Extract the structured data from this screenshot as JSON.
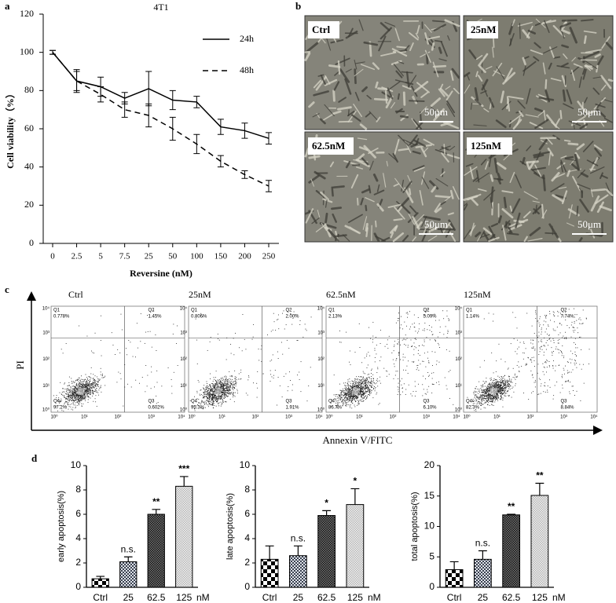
{
  "panel_labels": [
    "a",
    "b",
    "c",
    "d"
  ],
  "chart_data": [
    {
      "type": "line",
      "title": "4T1",
      "x_label": "Reversine (nM)",
      "y_label": "Cell viability（%）",
      "categories": [
        "0",
        "2.5",
        "5",
        "7.5",
        "25",
        "50",
        "100",
        "150",
        "200",
        "250"
      ],
      "ylim": [
        0,
        120
      ],
      "yticks": [
        0,
        20,
        40,
        60,
        80,
        100,
        120
      ],
      "series": [
        {
          "name": "24h",
          "color": "#000000",
          "dashed": false,
          "values": [
            100,
            85,
            82,
            76,
            81,
            75,
            74,
            61,
            59,
            55
          ],
          "error": [
            1,
            5,
            5,
            3,
            9,
            5,
            3,
            4,
            4,
            3
          ]
        },
        {
          "name": "48h",
          "color": "#000000",
          "dashed": true,
          "values": [
            100,
            85,
            78,
            70,
            67,
            60,
            52,
            43,
            36,
            30
          ],
          "error": [
            1,
            6,
            4,
            4,
            6,
            6,
            5,
            3,
            2,
            3
          ]
        }
      ]
    },
    {
      "type": "bar",
      "y_label": "early apoptosis(%)",
      "categories": [
        "Ctrl",
        "25",
        "62.5",
        "125"
      ],
      "x_unit": "nM",
      "values": [
        0.7,
        2.1,
        6.0,
        8.3
      ],
      "error": [
        0.2,
        0.4,
        0.4,
        0.8
      ],
      "annotations": [
        null,
        "n.s.",
        "**",
        "***"
      ],
      "patterns": [
        "checker",
        "fine-check",
        "dense",
        "light"
      ],
      "ylim": [
        0,
        10
      ],
      "yticks": [
        0,
        2,
        4,
        6,
        8,
        10
      ]
    },
    {
      "type": "bar",
      "y_label": "late apoptosis(%)",
      "categories": [
        "Ctrl",
        "25",
        "62.5",
        "125"
      ],
      "x_unit": "nM",
      "values": [
        2.3,
        2.6,
        5.9,
        6.8
      ],
      "error": [
        1.1,
        0.8,
        0.4,
        1.3
      ],
      "annotations": [
        null,
        "n.s.",
        "*",
        "*"
      ],
      "patterns": [
        "checker",
        "fine-check",
        "dense",
        "light"
      ],
      "ylim": [
        0,
        10
      ],
      "yticks": [
        0,
        2,
        4,
        6,
        8,
        10
      ]
    },
    {
      "type": "bar",
      "y_label": "total apoptosis(%)",
      "categories": [
        "Ctrl",
        "25",
        "62.5",
        "125"
      ],
      "x_unit": "nM",
      "values": [
        2.9,
        4.6,
        11.9,
        15.1
      ],
      "error": [
        1.3,
        1.4,
        0.1,
        2.0
      ],
      "annotations": [
        null,
        "n.s.",
        "**",
        "**"
      ],
      "patterns": [
        "checker",
        "fine-check",
        "dense",
        "light"
      ],
      "ylim": [
        0,
        20
      ],
      "yticks": [
        0,
        5,
        10,
        15,
        20
      ]
    }
  ],
  "micrographs": {
    "labels": [
      "Ctrl",
      "25nM",
      "62.5nM",
      "125nM"
    ],
    "scale_bar": "50μm"
  },
  "flow_cytometry": {
    "x_label": "Annexin V/FITC",
    "y_label": "PI",
    "tick_labels": [
      "10⁰",
      "10¹",
      "10²",
      "10³",
      "10⁴"
    ],
    "plots": [
      {
        "title": "Ctrl",
        "quadrants": [
          {
            "name": "Q1",
            "value": "0.778%"
          },
          {
            "name": "Q2",
            "value": "1.45%"
          },
          {
            "name": "Q3",
            "value": "0.602%"
          },
          {
            "name": "Q4",
            "value": "97.2%"
          }
        ]
      },
      {
        "title": "25nM",
        "quadrants": [
          {
            "name": "Q1",
            "value": "0.806%"
          },
          {
            "name": "Q2",
            "value": "2.00%"
          },
          {
            "name": "Q3",
            "value": "1.91%"
          },
          {
            "name": "Q4",
            "value": "95.3%"
          }
        ]
      },
      {
        "title": "62.5nM",
        "quadrants": [
          {
            "name": "Q1",
            "value": "2.13%"
          },
          {
            "name": "Q2",
            "value": "5.09%"
          },
          {
            "name": "Q3",
            "value": "6.10%"
          },
          {
            "name": "Q4",
            "value": "86.7%"
          }
        ]
      },
      {
        "title": "125nM",
        "quadrants": [
          {
            "name": "Q1",
            "value": "1.14%"
          },
          {
            "name": "Q2",
            "value": "7.74%"
          },
          {
            "name": "Q3",
            "value": "8.84%"
          },
          {
            "name": "Q4",
            "value": "82.3%"
          }
        ]
      }
    ]
  }
}
